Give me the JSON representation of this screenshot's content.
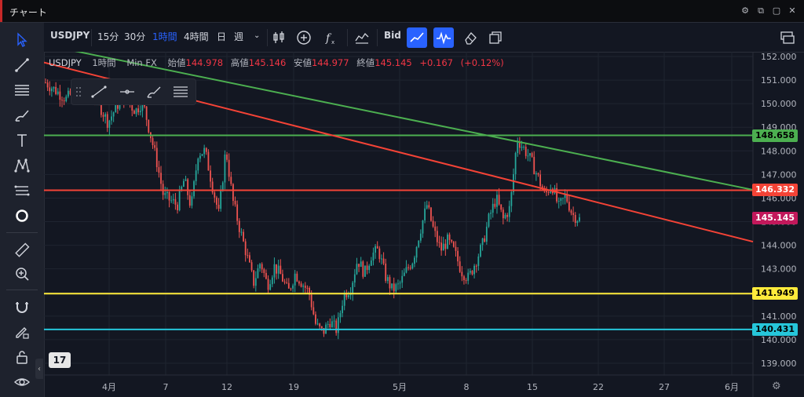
{
  "window": {
    "title": "チャート",
    "icons": [
      "settings-icon",
      "external-link-icon",
      "restore-icon",
      "close-icon"
    ]
  },
  "toolbar": {
    "symbol": "USDJPY",
    "timeframes": [
      "15分",
      "30分",
      "1時間",
      "4時間",
      "日",
      "週"
    ],
    "active_timeframe": "1時間",
    "price_source": "Bid"
  },
  "sidebar": {
    "tools": [
      "cursor-icon",
      "trend-line-icon",
      "fib-icon",
      "brush-icon",
      "text-icon",
      "pattern-icon",
      "measure-lines-icon",
      "circle-icon",
      "ruler-icon",
      "zoom-in-icon",
      "magnet-icon",
      "pencil-lock-icon",
      "unlock-icon",
      "eye-icon"
    ]
  },
  "legend": {
    "symbol": "USDJPY",
    "timeframe": "1時間",
    "source": "Min FX",
    "open_label": "始値",
    "open": "144.978",
    "high_label": "高値",
    "high": "145.146",
    "low_label": "安値",
    "low": "144.977",
    "close_label": "終値",
    "close": "145.145",
    "change": "+0.167",
    "change_pct": "(+0.12%)"
  },
  "chart_data": {
    "type": "candlestick",
    "y_ticks": [
      "152.000",
      "151.000",
      "150.000",
      "149.000",
      "148.000",
      "147.000",
      "146.000",
      "145.000",
      "144.000",
      "143.000",
      "142.000",
      "141.000",
      "140.000",
      "139.000"
    ],
    "ylim": [
      138.5,
      152.2
    ],
    "x_ticks": [
      "4月",
      "7",
      "12",
      "19",
      "5月",
      "8",
      "15",
      "22",
      "27",
      "6月"
    ],
    "horizontal_lines": [
      {
        "price": 148.658,
        "color": "#4caf50",
        "label": "148.658"
      },
      {
        "price": 146.332,
        "color": "#f44336",
        "label": "146.332"
      },
      {
        "price": 141.949,
        "color": "#ffeb3b",
        "label": "141.949"
      },
      {
        "price": 140.431,
        "color": "#26c6da",
        "label": "140.431"
      }
    ],
    "trend_lines": [
      {
        "color": "#4caf50",
        "from": [
          "start",
          152.5
        ],
        "to": [
          "end",
          146.35
        ]
      },
      {
        "color": "#f44336",
        "from": [
          "start",
          151.75
        ],
        "to": [
          "end",
          144.15
        ]
      }
    ],
    "last_price": {
      "price": 145.145,
      "label": "145.145",
      "color": "#c2185b"
    },
    "price_path": [
      [
        0,
        150.9
      ],
      [
        3,
        150.2
      ],
      [
        5,
        150.8
      ],
      [
        7,
        150.4
      ],
      [
        9,
        149.2
      ],
      [
        11,
        150.3
      ],
      [
        13,
        149.7
      ],
      [
        14,
        150.1
      ],
      [
        16,
        147.6
      ],
      [
        17,
        146.1
      ],
      [
        19,
        145.7
      ],
      [
        20,
        146.8
      ],
      [
        21,
        145.6
      ],
      [
        22,
        147.9
      ],
      [
        23,
        148.0
      ],
      [
        24,
        146.6
      ],
      [
        25,
        145.3
      ],
      [
        26,
        148.1
      ],
      [
        27,
        145.9
      ],
      [
        28,
        144.7
      ],
      [
        29,
        143.6
      ],
      [
        30,
        142.4
      ],
      [
        31,
        143.3
      ],
      [
        32,
        142.3
      ],
      [
        33,
        143.1
      ],
      [
        34,
        142.7
      ],
      [
        35,
        142.0
      ],
      [
        36,
        142.8
      ],
      [
        37,
        142.4
      ],
      [
        38,
        142.0
      ],
      [
        39,
        140.6
      ],
      [
        40,
        140.3
      ],
      [
        41,
        140.8
      ],
      [
        42,
        140.4
      ],
      [
        43,
        141.9
      ],
      [
        44,
        142.2
      ],
      [
        45,
        143.4
      ],
      [
        46,
        142.8
      ],
      [
        47,
        143.6
      ],
      [
        48,
        143.8
      ],
      [
        49,
        142.7
      ],
      [
        50,
        142.1
      ],
      [
        51,
        142.3
      ],
      [
        52,
        142.9
      ],
      [
        53,
        143.4
      ],
      [
        54,
        144.6
      ],
      [
        55,
        145.7
      ],
      [
        56,
        144.6
      ],
      [
        57,
        143.8
      ],
      [
        58,
        144.2
      ],
      [
        59,
        143.7
      ],
      [
        60,
        142.9
      ],
      [
        61,
        142.6
      ],
      [
        62,
        143.3
      ],
      [
        63,
        144.0
      ],
      [
        64,
        145.2
      ],
      [
        65,
        146.0
      ],
      [
        66,
        145.1
      ],
      [
        67,
        145.6
      ],
      [
        68,
        148.5
      ],
      [
        69,
        148.1
      ],
      [
        70,
        147.6
      ],
      [
        71,
        146.9
      ],
      [
        72,
        146.1
      ],
      [
        73,
        146.6
      ],
      [
        74,
        145.6
      ],
      [
        75,
        146.1
      ],
      [
        76,
        145.3
      ],
      [
        77,
        145.1
      ]
    ]
  },
  "colors": {
    "background": "#131722",
    "accent": "#2962ff",
    "up": "#26a69a",
    "down": "#ef5350"
  }
}
